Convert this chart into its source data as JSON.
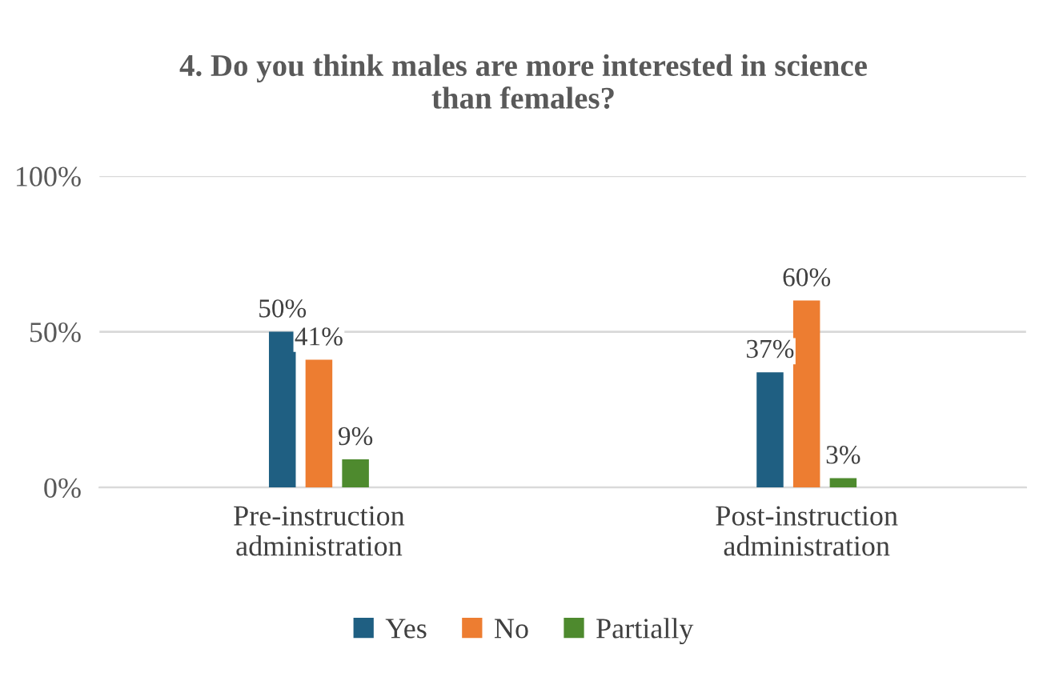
{
  "chart_data": {
    "type": "bar",
    "title": "4. Do you think males are more interested in science\nthan females?",
    "categories": [
      "Pre-instruction\nadministration",
      "Post-instruction\nadministration"
    ],
    "series": [
      {
        "name": "Yes",
        "color": "#1f5f82",
        "values": [
          50,
          37
        ],
        "value_labels": [
          "50%",
          "37%"
        ]
      },
      {
        "name": "No",
        "color": "#ed7d31",
        "values": [
          41,
          60
        ],
        "value_labels": [
          "41%",
          "60%"
        ]
      },
      {
        "name": "Partially",
        "color": "#4e8a2e",
        "values": [
          9,
          3
        ],
        "value_labels": [
          "9%",
          "3%"
        ]
      }
    ],
    "ylim": [
      0,
      100
    ],
    "yticks": [
      {
        "value": 0,
        "label": "0%"
      },
      {
        "value": 50,
        "label": "50%"
      },
      {
        "value": 100,
        "label": "100%"
      }
    ],
    "grid": "y",
    "legend": "bottom"
  }
}
